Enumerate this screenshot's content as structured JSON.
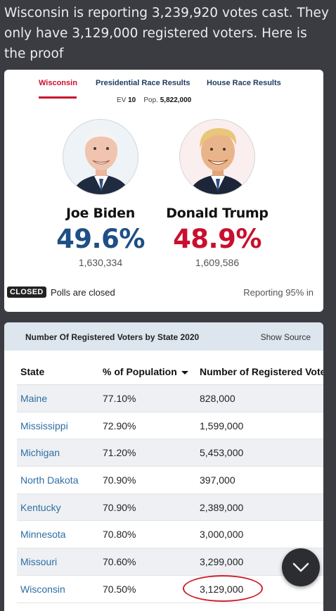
{
  "post": {
    "text": "Wisconsin is reporting 3,239,920 votes cast. They only have 3,129,000 registered voters. Here is the proof"
  },
  "election_card": {
    "tabs": [
      {
        "label": "Wisconsin",
        "active": true
      },
      {
        "label": "Presidential Race Results",
        "active": false
      },
      {
        "label": "House Race Results",
        "active": false
      }
    ],
    "ev_label": "EV",
    "ev_value": "10",
    "pop_label": "Pop.",
    "pop_value": "5,822,000",
    "candidates": [
      {
        "name": "Joe Biden",
        "percent": "49.6%",
        "votes": "1,630,334",
        "color": "#1e4f85"
      },
      {
        "name": "Donald Trump",
        "percent": "48.9%",
        "votes": "1,609,586",
        "color": "#c8102e"
      }
    ],
    "status_badge": "CLOSED",
    "status_text": "Polls are closed",
    "reporting": "Reporting 95% in"
  },
  "voters_card": {
    "title": "Number Of Registered Voters by State 2020",
    "show_source": "Show Source",
    "columns": [
      "State",
      "% of Population",
      "Number of Registered Voters"
    ],
    "rows": [
      {
        "state": "Maine",
        "pct": "77.10%",
        "number": "828,000"
      },
      {
        "state": "Mississippi",
        "pct": "72.90%",
        "number": "1,599,000"
      },
      {
        "state": "Michigan",
        "pct": "71.20%",
        "number": "5,453,000"
      },
      {
        "state": "North Dakota",
        "pct": "70.90%",
        "number": "397,000"
      },
      {
        "state": "Kentucky",
        "pct": "70.90%",
        "number": "2,389,000"
      },
      {
        "state": "Minnesota",
        "pct": "70.80%",
        "number": "3,000,000"
      },
      {
        "state": "Missouri",
        "pct": "70.60%",
        "number": "3,299,000"
      },
      {
        "state": "Wisconsin",
        "pct": "70.50%",
        "number": "3,129,000"
      }
    ]
  },
  "colors": {
    "accent_red": "#c8102e",
    "accent_blue": "#1e4f85",
    "highlight_circle": "#d0202b",
    "background": "#3a3c42"
  },
  "icons": {
    "fab": "chevron-down-icon"
  }
}
